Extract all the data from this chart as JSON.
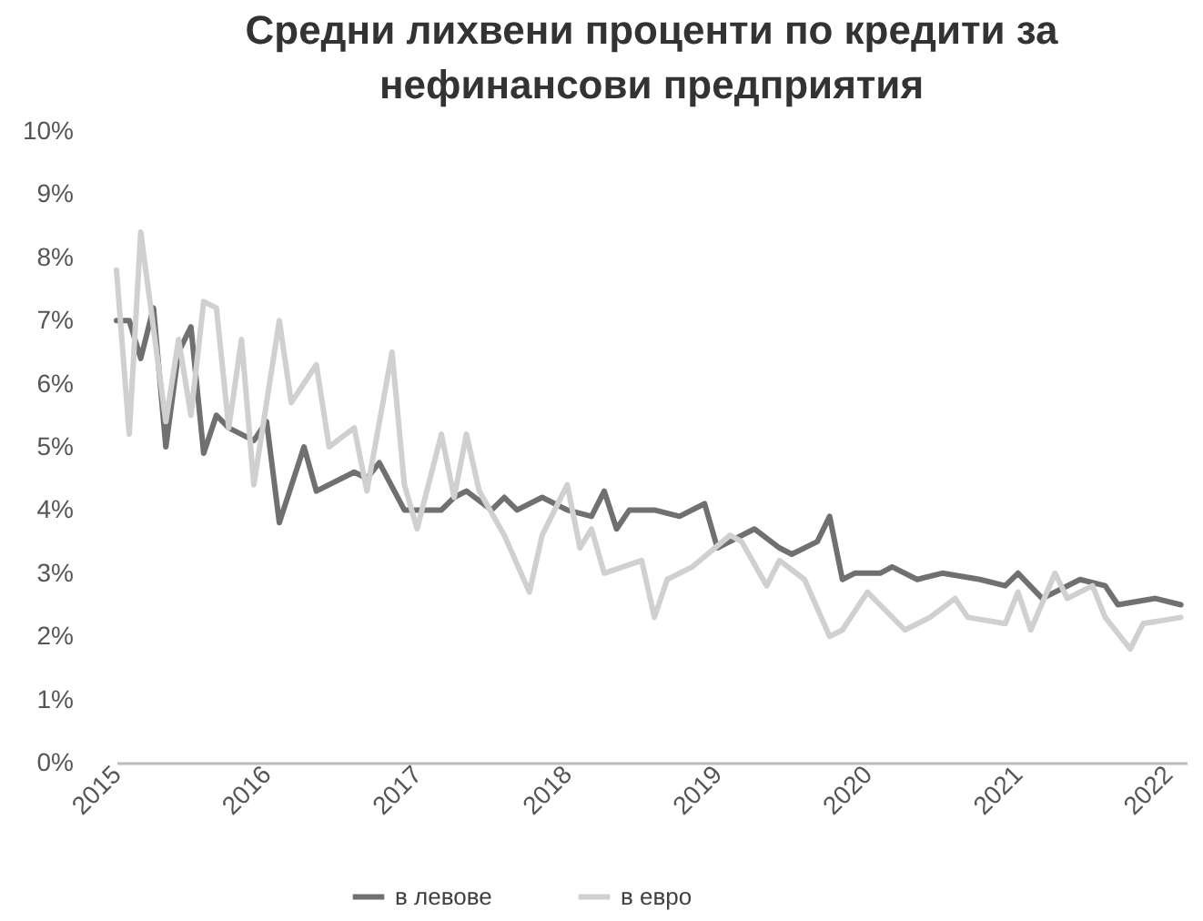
{
  "chart_data": {
    "type": "line",
    "title": "Средни лихвени проценти по кредити за\nнефинансови предприятия",
    "xlim": [
      "2015-01-01",
      "2022-02-15"
    ],
    "xticks": [
      "2015",
      "2016",
      "2017",
      "2018",
      "2019",
      "2020",
      "2021",
      "2022"
    ],
    "ylim": [
      0,
      10
    ],
    "yticks": [
      {
        "value": 0,
        "label": "0%"
      },
      {
        "value": 1,
        "label": "1%"
      },
      {
        "value": 2,
        "label": "2%"
      },
      {
        "value": 3,
        "label": "3%"
      },
      {
        "value": 4,
        "label": "4%"
      },
      {
        "value": 5,
        "label": "5%"
      },
      {
        "value": 6,
        "label": "6%"
      },
      {
        "value": 7,
        "label": "7%"
      },
      {
        "value": 8,
        "label": "8%"
      },
      {
        "value": 9,
        "label": "9%"
      },
      {
        "value": 10,
        "label": "10%"
      }
    ],
    "grid": false,
    "legend": "bottom",
    "line_style": "solid",
    "marker": "none",
    "series": [
      {
        "name": "в левове",
        "color": "#707070",
        "x": [
          "2015-01",
          "2015-02",
          "2015-03",
          "2015-04",
          "2015-05",
          "2015-06",
          "2015-07",
          "2015-08",
          "2015-09",
          "2015-10",
          "2015-12",
          "2016-01",
          "2016-02",
          "2016-04",
          "2016-05",
          "2016-08",
          "2016-09",
          "2016-10",
          "2016-12",
          "2017-03",
          "2017-04",
          "2017-05",
          "2017-07",
          "2017-08",
          "2017-09",
          "2017-11",
          "2018-01",
          "2018-03",
          "2018-04",
          "2018-05",
          "2018-06",
          "2018-08",
          "2018-10",
          "2018-12",
          "2019-01",
          "2019-04",
          "2019-06",
          "2019-07",
          "2019-09",
          "2019-10",
          "2019-11",
          "2019-12",
          "2020-02",
          "2020-03",
          "2020-05",
          "2020-07",
          "2020-10",
          "2020-12",
          "2021-01",
          "2021-03",
          "2021-06",
          "2021-08",
          "2021-09",
          "2021-12",
          "2022-02"
        ],
        "values": [
          7.0,
          7.0,
          6.4,
          7.2,
          5.0,
          6.5,
          6.9,
          4.9,
          5.5,
          5.3,
          5.1,
          5.4,
          3.8,
          5.0,
          4.3,
          4.6,
          4.5,
          4.75,
          4.0,
          4.0,
          4.2,
          4.3,
          4.0,
          4.2,
          4.0,
          4.2,
          4.0,
          3.9,
          4.3,
          3.7,
          4.0,
          4.0,
          3.9,
          4.1,
          3.4,
          3.7,
          3.4,
          3.3,
          3.5,
          3.9,
          2.9,
          3.0,
          3.0,
          3.1,
          2.9,
          3.0,
          2.9,
          2.8,
          3.0,
          2.6,
          2.9,
          2.8,
          2.5,
          2.6,
          2.5
        ]
      },
      {
        "name": "в евро",
        "color": "#d0d0d0",
        "x": [
          "2015-01",
          "2015-02",
          "2015-03",
          "2015-05",
          "2015-06",
          "2015-07",
          "2015-08",
          "2015-09",
          "2015-10",
          "2015-11",
          "2015-12",
          "2016-02",
          "2016-03",
          "2016-05",
          "2016-06",
          "2016-08",
          "2016-09",
          "2016-11",
          "2016-12",
          "2017-01",
          "2017-03",
          "2017-04",
          "2017-05",
          "2017-06",
          "2017-08",
          "2017-10",
          "2017-11",
          "2018-01",
          "2018-02",
          "2018-03",
          "2018-04",
          "2018-07",
          "2018-08",
          "2018-09",
          "2018-11",
          "2019-02",
          "2019-03",
          "2019-05",
          "2019-06",
          "2019-08",
          "2019-10",
          "2019-11",
          "2020-01",
          "2020-04",
          "2020-06",
          "2020-08",
          "2020-09",
          "2020-12",
          "2021-01",
          "2021-02",
          "2021-04",
          "2021-05",
          "2021-07",
          "2021-08",
          "2021-10",
          "2021-11",
          "2022-02"
        ],
        "values": [
          7.8,
          5.2,
          8.4,
          5.4,
          6.7,
          5.5,
          7.3,
          7.2,
          5.3,
          6.7,
          4.4,
          7.0,
          5.7,
          6.3,
          5.0,
          5.3,
          4.3,
          6.5,
          4.4,
          3.7,
          5.2,
          4.2,
          5.2,
          4.3,
          3.6,
          2.7,
          3.6,
          4.4,
          3.4,
          3.7,
          3.0,
          3.2,
          2.3,
          2.9,
          3.1,
          3.6,
          3.5,
          2.8,
          3.2,
          2.9,
          2.0,
          2.1,
          2.7,
          2.1,
          2.3,
          2.6,
          2.3,
          2.2,
          2.7,
          2.1,
          3.0,
          2.6,
          2.8,
          2.3,
          1.8,
          2.2,
          2.3
        ]
      }
    ]
  }
}
